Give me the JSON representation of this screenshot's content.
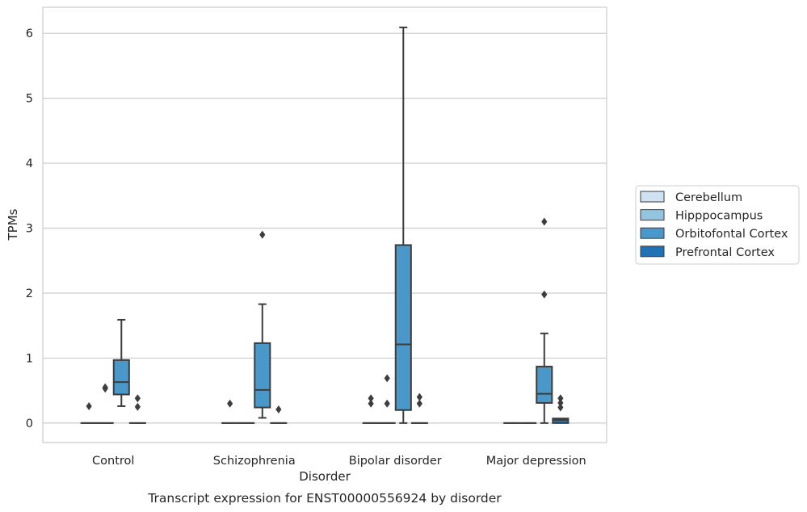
{
  "chart_data": {
    "type": "box",
    "title": "Transcript expression for ENST00000556924 by disorder",
    "xlabel": "Disorder",
    "ylabel": "TPMs",
    "ylim": [
      -0.3,
      6.4
    ],
    "yticks": [
      "0",
      "1",
      "2",
      "3",
      "4",
      "5",
      "6"
    ],
    "grid": "horizontal",
    "legend_position": "right",
    "categories": [
      "Control",
      "Schizophrenia",
      "Bipolar disorder",
      "Major depression"
    ],
    "series": [
      {
        "name": "Cerebellum",
        "color": "#d0e1f2",
        "boxes": [
          {
            "q1": 0,
            "median": 0,
            "q3": 0,
            "whisker_low": 0,
            "whisker_high": 0,
            "outliers": [
              0.26
            ]
          },
          {
            "q1": 0,
            "median": 0,
            "q3": 0,
            "whisker_low": 0,
            "whisker_high": 0,
            "outliers": [
              0.3
            ]
          },
          {
            "q1": 0,
            "median": 0,
            "q3": 0,
            "whisker_low": 0,
            "whisker_high": 0,
            "outliers": [
              0.3,
              0.38
            ]
          },
          {
            "q1": 0,
            "median": 0,
            "q3": 0,
            "whisker_low": 0,
            "whisker_high": 0,
            "outliers": []
          }
        ]
      },
      {
        "name": "Hipppocampus",
        "color": "#94c4df",
        "boxes": [
          {
            "q1": 0,
            "median": 0,
            "q3": 0,
            "whisker_low": 0,
            "whisker_high": 0,
            "outliers": [
              0.53,
              0.55
            ]
          },
          {
            "q1": 0,
            "median": 0,
            "q3": 0,
            "whisker_low": 0,
            "whisker_high": 0,
            "outliers": []
          },
          {
            "q1": 0,
            "median": 0,
            "q3": 0,
            "whisker_low": 0,
            "whisker_high": 0,
            "outliers": [
              0.3,
              0.69
            ]
          },
          {
            "q1": 0,
            "median": 0,
            "q3": 0,
            "whisker_low": 0,
            "whisker_high": 0,
            "outliers": []
          }
        ]
      },
      {
        "name": "Orbitofontal Cortex",
        "color": "#4a98c9",
        "boxes": [
          {
            "q1": 0.44,
            "median": 0.63,
            "q3": 0.97,
            "whisker_low": 0.26,
            "whisker_high": 1.59,
            "outliers": []
          },
          {
            "q1": 0.24,
            "median": 0.51,
            "q3": 1.23,
            "whisker_low": 0.08,
            "whisker_high": 1.83,
            "outliers": [
              2.9
            ]
          },
          {
            "q1": 0.2,
            "median": 1.21,
            "q3": 2.74,
            "whisker_low": 0,
            "whisker_high": 6.09,
            "outliers": []
          },
          {
            "q1": 0.31,
            "median": 0.45,
            "q3": 0.87,
            "whisker_low": 0,
            "whisker_high": 1.38,
            "outliers": [
              1.98,
              3.1
            ]
          }
        ]
      },
      {
        "name": "Prefrontal Cortex",
        "color": "#2171b5",
        "boxes": [
          {
            "q1": 0,
            "median": 0,
            "q3": 0,
            "whisker_low": 0,
            "whisker_high": 0,
            "outliers": [
              0.25,
              0.38
            ]
          },
          {
            "q1": 0,
            "median": 0,
            "q3": 0,
            "whisker_low": 0,
            "whisker_high": 0,
            "outliers": [
              0.21
            ]
          },
          {
            "q1": 0,
            "median": 0,
            "q3": 0,
            "whisker_low": 0,
            "whisker_high": 0,
            "outliers": [
              0.3,
              0.4
            ]
          },
          {
            "q1": 0,
            "median": 0.05,
            "q3": 0.07,
            "whisker_low": 0,
            "whisker_high": 0.07,
            "outliers": [
              0.24,
              0.31,
              0.38
            ]
          }
        ]
      }
    ]
  }
}
